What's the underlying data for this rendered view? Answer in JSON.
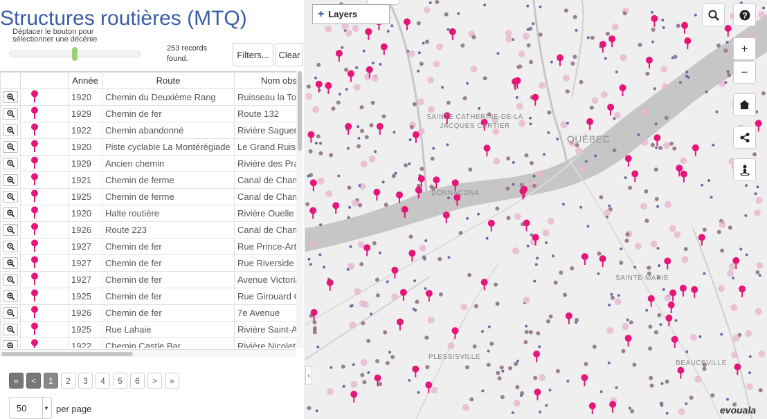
{
  "header": {
    "title": "Structures routières (MTQ)",
    "slider_label": "Déplacer le bouton pour sélectionner une décénie",
    "records": "253 records found.",
    "filters_label": "Filters...",
    "clear_label": "Clear"
  },
  "table": {
    "columns": [
      "",
      "",
      "Année",
      "Route",
      "Nom obstacle"
    ],
    "rows": [
      {
        "annee": "1920",
        "route": "Chemin du Deuxième Rang",
        "nom": "Ruisseau la Tortue"
      },
      {
        "annee": "1929",
        "route": "Chemin de fer",
        "nom": "Route 132"
      },
      {
        "annee": "1922",
        "route": "Chemin abandonné",
        "nom": "Rivière Saguenay"
      },
      {
        "annee": "1920",
        "route": "Piste cyclable La Montérégiade",
        "nom": "Le Grand Ruisseau"
      },
      {
        "annee": "1929",
        "route": "Ancien chemin",
        "nom": "Rivière des Prairies"
      },
      {
        "annee": "1921",
        "route": "Chemin de ferme",
        "nom": "Canal de Chambly"
      },
      {
        "annee": "1925",
        "route": "Chemin de ferme",
        "nom": "Canal de Chambly"
      },
      {
        "annee": "1920",
        "route": "Halte routière",
        "nom": "Rivière Ouelle"
      },
      {
        "annee": "1926",
        "route": "Route 223",
        "nom": "Canal de Chambly"
      },
      {
        "annee": "1927",
        "route": "Chemin de fer",
        "nom": "Rue Prince-Arthur"
      },
      {
        "annee": "1927",
        "route": "Chemin de fer",
        "nom": "Rue Riverside"
      },
      {
        "annee": "1927",
        "route": "Chemin de fer",
        "nom": "Avenue Victoria"
      },
      {
        "annee": "1925",
        "route": "Chemin de fer",
        "nom": "Rue Girouard Ouest"
      },
      {
        "annee": "1926",
        "route": "Chemin de fer",
        "nom": "7e Avenue"
      },
      {
        "annee": "1925",
        "route": "Rue Lahaie",
        "nom": "Rivière Saint-André"
      },
      {
        "annee": "1922",
        "route": "Chemin Castle Bar",
        "nom": "Rivière Nicolet"
      }
    ]
  },
  "pagination": {
    "first": "«",
    "prev": "<",
    "pages": [
      "1",
      "2",
      "3",
      "4",
      "5",
      "6"
    ],
    "next": ">",
    "last": "»",
    "current": "1",
    "per_page_value": "50",
    "per_page_label": "per page"
  },
  "map": {
    "layers_label": "Layers",
    "place_labels": [
      "SAINTE CATHERINE-DE-LA JACQUES CARTIER",
      "QUÉBEC",
      "DONNACONA",
      "SAINTE-MARIE",
      "PLESSISVILLE",
      "BEAUCEVILLE"
    ],
    "brand": "evouala",
    "colors": {
      "pin": "#e6157a",
      "dot_purple": "#6c6aa3",
      "dot_mauve": "#9c7f8f",
      "dot_pink": "#e8b6cf",
      "water": "#c2c2c2"
    }
  },
  "icons": [
    "zoom-in-icon",
    "map-pin-icon",
    "search-icon",
    "help-icon",
    "plus-icon",
    "minus-icon",
    "home-icon",
    "share-icon",
    "street-view-icon",
    "chevron-left-icon"
  ]
}
